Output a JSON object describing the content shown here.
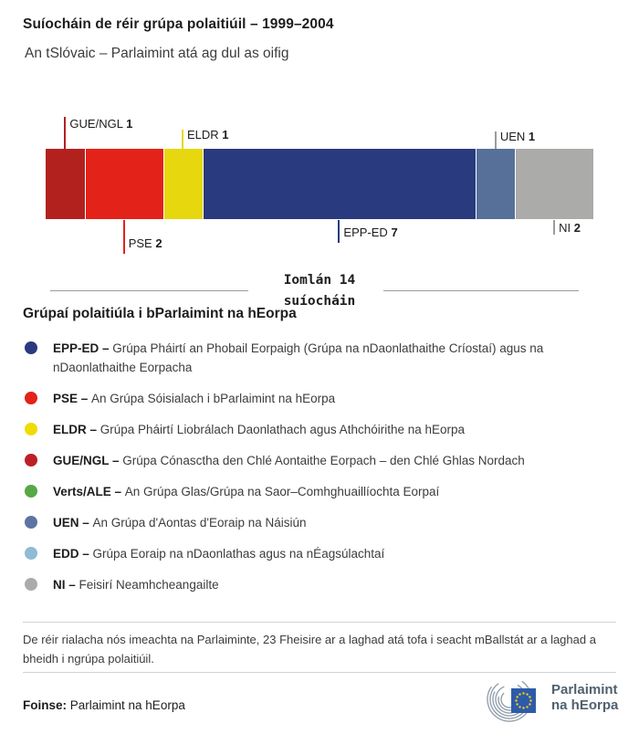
{
  "header": {
    "title": "Suíocháin de réir grúpa polaitiúil – 1999–2004",
    "subtitle": "An tSlóvaic – Parlaimint atá ag dul as oifig"
  },
  "chart_data": {
    "type": "bar",
    "orientation": "horizontal-stacked",
    "title": "Suíocháin de réir grúpa polaitiúil – 1999–2004",
    "total_seats": 14,
    "segments": [
      {
        "group": "GUE/NGL",
        "seats": 1,
        "color": "#B3211F",
        "tick_color": "#B3211F",
        "label_side": "above"
      },
      {
        "group": "PSE",
        "seats": 2,
        "color": "#E32219",
        "tick_color": "#E32219",
        "label_side": "below"
      },
      {
        "group": "ELDR",
        "seats": 1,
        "color": "#E7D70E",
        "tick_color": "#E7D70E",
        "label_side": "above"
      },
      {
        "group": "EPP-ED",
        "seats": 7,
        "color": "#2A3A7E",
        "tick_color": "#2A3A7E",
        "label_side": "below"
      },
      {
        "group": "UEN",
        "seats": 1,
        "color": "#56709A",
        "tick_color": "#9b9b9b",
        "label_side": "above"
      },
      {
        "group": "NI",
        "seats": 2,
        "color": "#ABABA9",
        "tick_color": "#9b9b9b",
        "label_side": "below"
      }
    ]
  },
  "total": {
    "line1": "Iomlán 14",
    "line2": "suíocháin"
  },
  "legend": {
    "heading": "Grúpaí polaitiúla i bParlaimint na hEorpa",
    "items": [
      {
        "abbr": "EPP-ED",
        "color": "#2A3A7E",
        "name": "Grúpa Pháirtí an Phobail Eorpaigh (Grúpa na nDaonlathaithe Críostaí) agus na nDaonlathaithe Eorpacha"
      },
      {
        "abbr": "PSE",
        "color": "#E32219",
        "name": "An Grúpa Sóisialach i bParlaimint na hEorpa"
      },
      {
        "abbr": "ELDR",
        "color": "#F0DC00",
        "name": "Grúpa Pháirtí Liobrálach Daonlathach agus Athchóirithe na hEorpa"
      },
      {
        "abbr": "GUE/NGL",
        "color": "#BC2025",
        "name": "Grúpa Cónasctha den Chlé Aontaithe Eorpach – den Chlé Ghlas Nordach"
      },
      {
        "abbr": "Verts/ALE",
        "color": "#57A846",
        "name": "An Grúpa Glas/Grúpa na Saor–Comhghuaillíochta Eorpaí"
      },
      {
        "abbr": "UEN",
        "color": "#5C74A3",
        "name": "An Grúpa d'Aontas d'Eoraip na Náisiún"
      },
      {
        "abbr": "EDD",
        "color": "#8FBBD4",
        "name": "Grúpa Eoraip na nDaonlathas agus na nÉagsúlachtaí"
      },
      {
        "abbr": "NI",
        "color": "#ABABA9",
        "name": "Feisirí Neamhcheangailte"
      }
    ]
  },
  "footnote": "De réir rialacha nós imeachta na Parlaiminte, 23 Fheisire ar a laghad atá tofa i seacht mBallstát ar a laghad a bheidh i ngrúpa polaitiúil.",
  "footer": {
    "source_label": "Foinse:",
    "source_value": " Parlaimint na hEorpa",
    "logo_line1": "Parlaimint",
    "logo_line2": "na hEorpa"
  }
}
